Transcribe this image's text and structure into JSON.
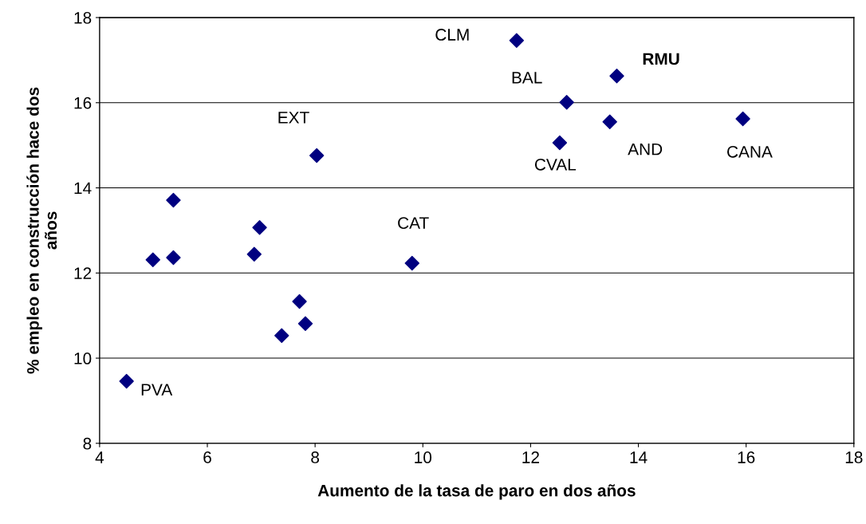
{
  "chart_data": {
    "type": "scatter",
    "xlabel": "Aumento de la tasa de paro en dos años",
    "ylabel": "% empleo en construcción hace dos años",
    "series": [
      {
        "color": "#000080",
        "marker": "diamond",
        "x": [
          11.74,
          13.6,
          12.67,
          13.47,
          12.54,
          15.94,
          8.03,
          5.37,
          6.97,
          6.87,
          4.99,
          5.37,
          9.8,
          7.71,
          7.82,
          7.38,
          4.5
        ],
        "values": [
          17.46,
          16.63,
          16.01,
          15.55,
          15.06,
          15.62,
          14.76,
          13.71,
          13.07,
          12.44,
          12.31,
          12.36,
          12.23,
          11.33,
          10.81,
          10.53,
          9.46
        ]
      }
    ],
    "annotations": [
      {
        "text": "CLM",
        "x": 11.74,
        "y": 17.46
      },
      {
        "text": "RMU",
        "x": 13.6,
        "y": 16.63
      },
      {
        "text": "BAL",
        "x": 12.67,
        "y": 16.01
      },
      {
        "text": "AND",
        "x": 13.47,
        "y": 15.55
      },
      {
        "text": "CVAL",
        "x": 12.54,
        "y": 15.06
      },
      {
        "text": "CANA",
        "x": 15.94,
        "y": 15.62
      },
      {
        "text": "EXT",
        "x": 8.03,
        "y": 14.76
      },
      {
        "text": "CAT",
        "x": 9.8,
        "y": 12.23
      },
      {
        "text": "PVA",
        "x": 4.5,
        "y": 9.46
      }
    ],
    "xlim": [
      4,
      18
    ],
    "xticks": [
      4,
      6,
      8,
      10,
      12,
      14,
      16,
      18
    ],
    "ylim": [
      8,
      18
    ],
    "yticks": [
      8,
      10,
      12,
      14,
      16,
      18
    ],
    "grid": "y",
    "legend": false
  }
}
